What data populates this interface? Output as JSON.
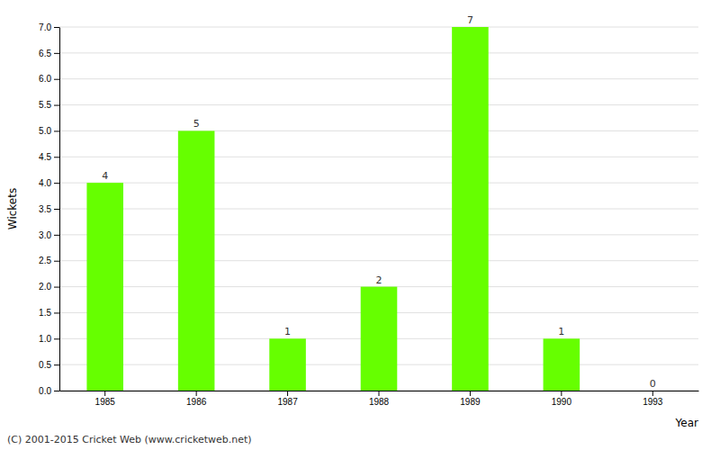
{
  "chart_data": {
    "type": "bar",
    "categories": [
      "1985",
      "1986",
      "1987",
      "1988",
      "1989",
      "1990",
      "1993"
    ],
    "values": [
      4,
      5,
      1,
      2,
      7,
      1,
      0
    ],
    "color": "#66ff00",
    "xlabel": "Year",
    "ylabel": "Wickets",
    "ylim": [
      0,
      7
    ],
    "yticks": [
      {
        "value": 0,
        "label": "0.0"
      },
      0.5,
      {
        "value": 1,
        "label": "1.0"
      },
      1.5,
      {
        "value": 2,
        "label": "2.0"
      },
      2.5,
      {
        "value": 3,
        "label": "3.0"
      },
      3.5,
      {
        "value": 4,
        "label": "4.0"
      },
      4.5,
      {
        "value": 5,
        "label": "5.0"
      },
      5.5,
      {
        "value": 6,
        "label": "6.0"
      },
      6.5,
      {
        "value": 7,
        "label": "7.0"
      }
    ],
    "grid": true,
    "data_labels": true,
    "annotation": "(C) 2001-2015 Cricket Web (www.cricketweb.net)"
  }
}
